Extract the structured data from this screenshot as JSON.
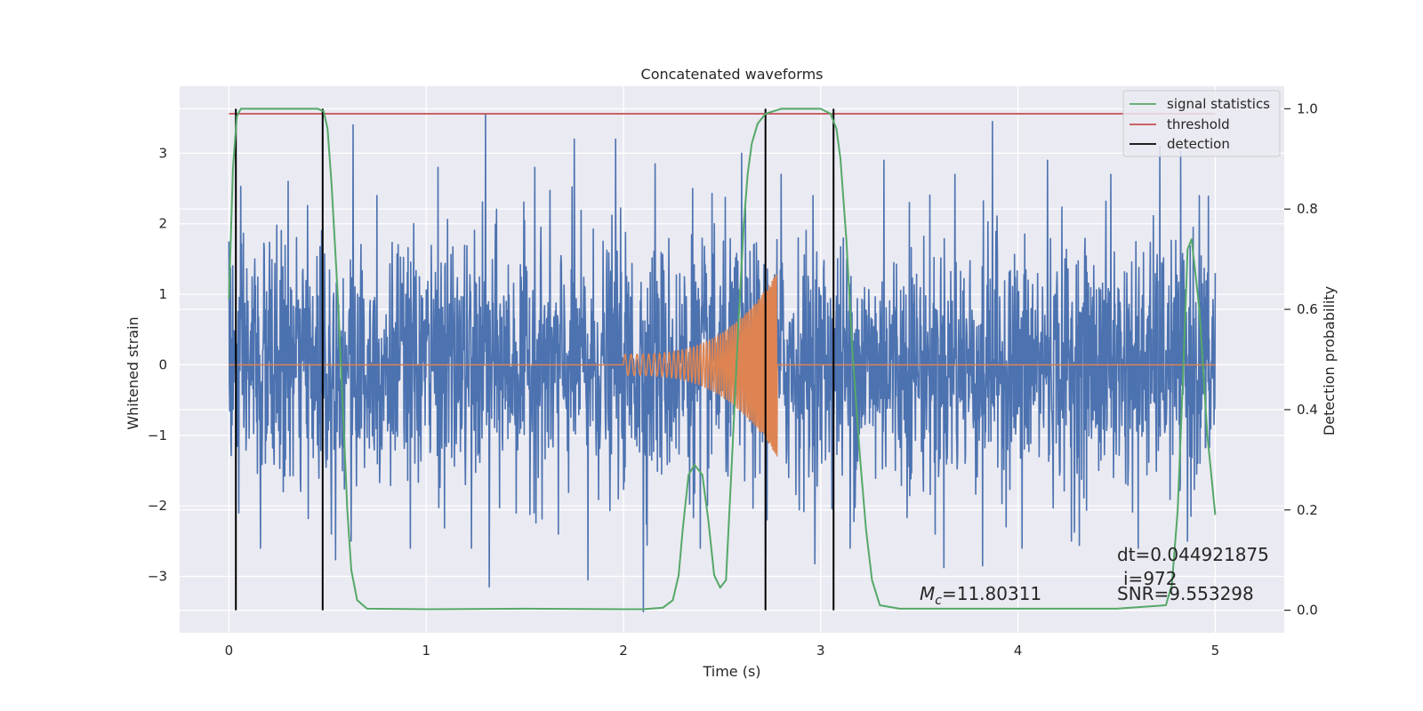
{
  "chart_data": {
    "type": "line",
    "title": "Concatenated waveforms",
    "xlabel": "Time (s)",
    "ylabel": "Whitened strain",
    "y2label": "Detection probability",
    "xlim": [
      -0.25,
      5.35
    ],
    "ylim": [
      -3.8,
      3.95
    ],
    "y2lim": [
      -0.045,
      1.045
    ],
    "xticks": [
      "0",
      "1",
      "2",
      "3",
      "4",
      "5"
    ],
    "xtick_values": [
      0,
      1,
      2,
      3,
      4,
      5
    ],
    "yticks": [
      "−3",
      "−2",
      "−1",
      "0",
      "1",
      "2",
      "3"
    ],
    "ytick_values": [
      -3,
      -2,
      -1,
      0,
      1,
      2,
      3
    ],
    "y2ticks": [
      "0.0",
      "0.2",
      "0.4",
      "0.6",
      "0.8",
      "1.0"
    ],
    "y2tick_values": [
      0,
      0.2,
      0.4,
      0.6,
      0.8,
      1.0
    ],
    "grid": true,
    "legend_position": "top-right",
    "legend": [
      {
        "label": "signal statistics",
        "color": "#55a868"
      },
      {
        "label": "threshold",
        "color": "#c44e52"
      },
      {
        "label": "detection",
        "color": "#000000"
      }
    ],
    "colors": {
      "strain": "#4c72b0",
      "template": "#dd8452",
      "signal_statistics": "#55a868",
      "threshold": "#c44e52",
      "detection": "#000000",
      "plot_background": "#eaeaf2",
      "grid": "#ffffff"
    },
    "series": [
      {
        "name": "",
        "axis": "left",
        "color": "#4c72b0",
        "description_range": [
          0,
          5
        ],
        "peaks": [
          [
            0.0,
            1.75
          ],
          [
            0.05,
            -2.1
          ],
          [
            0.13,
            1.5
          ],
          [
            0.16,
            -2.6
          ],
          [
            0.3,
            2.6
          ],
          [
            0.47,
            1.9
          ],
          [
            0.52,
            -2.4
          ],
          [
            0.62,
            -2.5
          ],
          [
            0.63,
            3.4
          ],
          [
            0.75,
            2.4
          ],
          [
            0.92,
            -2.6
          ],
          [
            1.06,
            2.8
          ],
          [
            1.23,
            -2.6
          ],
          [
            1.3,
            3.55
          ],
          [
            1.32,
            -3.15
          ],
          [
            1.55,
            2.8
          ],
          [
            1.67,
            -2.4
          ],
          [
            1.75,
            3.2
          ],
          [
            1.82,
            -3.05
          ],
          [
            1.96,
            3.2
          ],
          [
            2.1,
            -3.5
          ],
          [
            2.16,
            2.85
          ],
          [
            2.35,
            2.5
          ],
          [
            2.39,
            -2.6
          ],
          [
            2.46,
            2.0
          ],
          [
            2.6,
            3.0
          ],
          [
            2.72,
            -2.7
          ],
          [
            2.8,
            2.7
          ],
          [
            2.96,
            2.4
          ],
          [
            3.15,
            -2.6
          ],
          [
            3.32,
            2.9
          ],
          [
            3.45,
            2.3
          ],
          [
            3.58,
            -2.4
          ],
          [
            3.68,
            2.7
          ],
          [
            3.82,
            -2.85
          ],
          [
            3.87,
            3.45
          ],
          [
            4.02,
            -2.6
          ],
          [
            4.15,
            2.9
          ],
          [
            4.27,
            -2.5
          ],
          [
            4.47,
            2.7
          ],
          [
            4.61,
            -2.6
          ],
          [
            4.72,
            3.1
          ],
          [
            4.86,
            -2.5
          ],
          [
            4.92,
            2.4
          ],
          [
            5.0,
            1.3
          ]
        ]
      },
      {
        "name": "",
        "axis": "left",
        "color": "#dd8452",
        "chirp": {
          "start": 2.0,
          "end": 2.78,
          "amp_start": 0.15,
          "amp_end": 1.3,
          "flat_value": 0
        }
      },
      {
        "name": "signal statistics",
        "axis": "right",
        "color": "#55a868",
        "x": [
          0.0,
          0.02,
          0.04,
          0.06,
          0.1,
          0.2,
          0.3,
          0.4,
          0.45,
          0.48,
          0.5,
          0.52,
          0.55,
          0.58,
          0.6,
          0.62,
          0.65,
          0.7,
          1.0,
          1.5,
          2.0,
          2.1,
          2.2,
          2.25,
          2.28,
          2.3,
          2.33,
          2.36,
          2.4,
          2.43,
          2.46,
          2.49,
          2.52,
          2.55,
          2.58,
          2.61,
          2.63,
          2.65,
          2.68,
          2.72,
          2.8,
          2.9,
          3.0,
          3.05,
          3.08,
          3.1,
          3.13,
          3.16,
          3.2,
          3.23,
          3.26,
          3.3,
          3.4,
          4.0,
          4.5,
          4.75,
          4.78,
          4.81,
          4.84,
          4.86,
          4.88,
          4.92,
          4.96,
          5.0
        ],
        "y": [
          0.62,
          0.88,
          0.985,
          1.0,
          1.0,
          1.0,
          1.0,
          1.0,
          1.0,
          0.995,
          0.96,
          0.85,
          0.64,
          0.38,
          0.2,
          0.08,
          0.02,
          0.003,
          0.002,
          0.003,
          0.002,
          0.002,
          0.005,
          0.02,
          0.07,
          0.16,
          0.27,
          0.29,
          0.27,
          0.18,
          0.07,
          0.045,
          0.06,
          0.3,
          0.55,
          0.77,
          0.87,
          0.93,
          0.97,
          0.99,
          1.0,
          1.0,
          1.0,
          0.99,
          0.96,
          0.9,
          0.74,
          0.52,
          0.3,
          0.16,
          0.06,
          0.01,
          0.003,
          0.003,
          0.003,
          0.01,
          0.05,
          0.2,
          0.5,
          0.72,
          0.74,
          0.6,
          0.35,
          0.19
        ]
      },
      {
        "name": "threshold",
        "axis": "right",
        "color": "#c44e52",
        "x": [
          0.0,
          5.0
        ],
        "y": [
          0.99,
          0.99
        ]
      },
      {
        "name": "detection",
        "axis": "right",
        "color": "#000000",
        "vlines": [
          0.035,
          0.475,
          2.72,
          3.065
        ],
        "ymin": 0,
        "ymax": 1
      }
    ],
    "annotations": {
      "dt": "dt=0.044921875",
      "index": "i=972",
      "mc_symbol": "M",
      "mc_sub": "c",
      "mc_value": "=11.80311",
      "snr": "SNR=9.553298"
    }
  }
}
